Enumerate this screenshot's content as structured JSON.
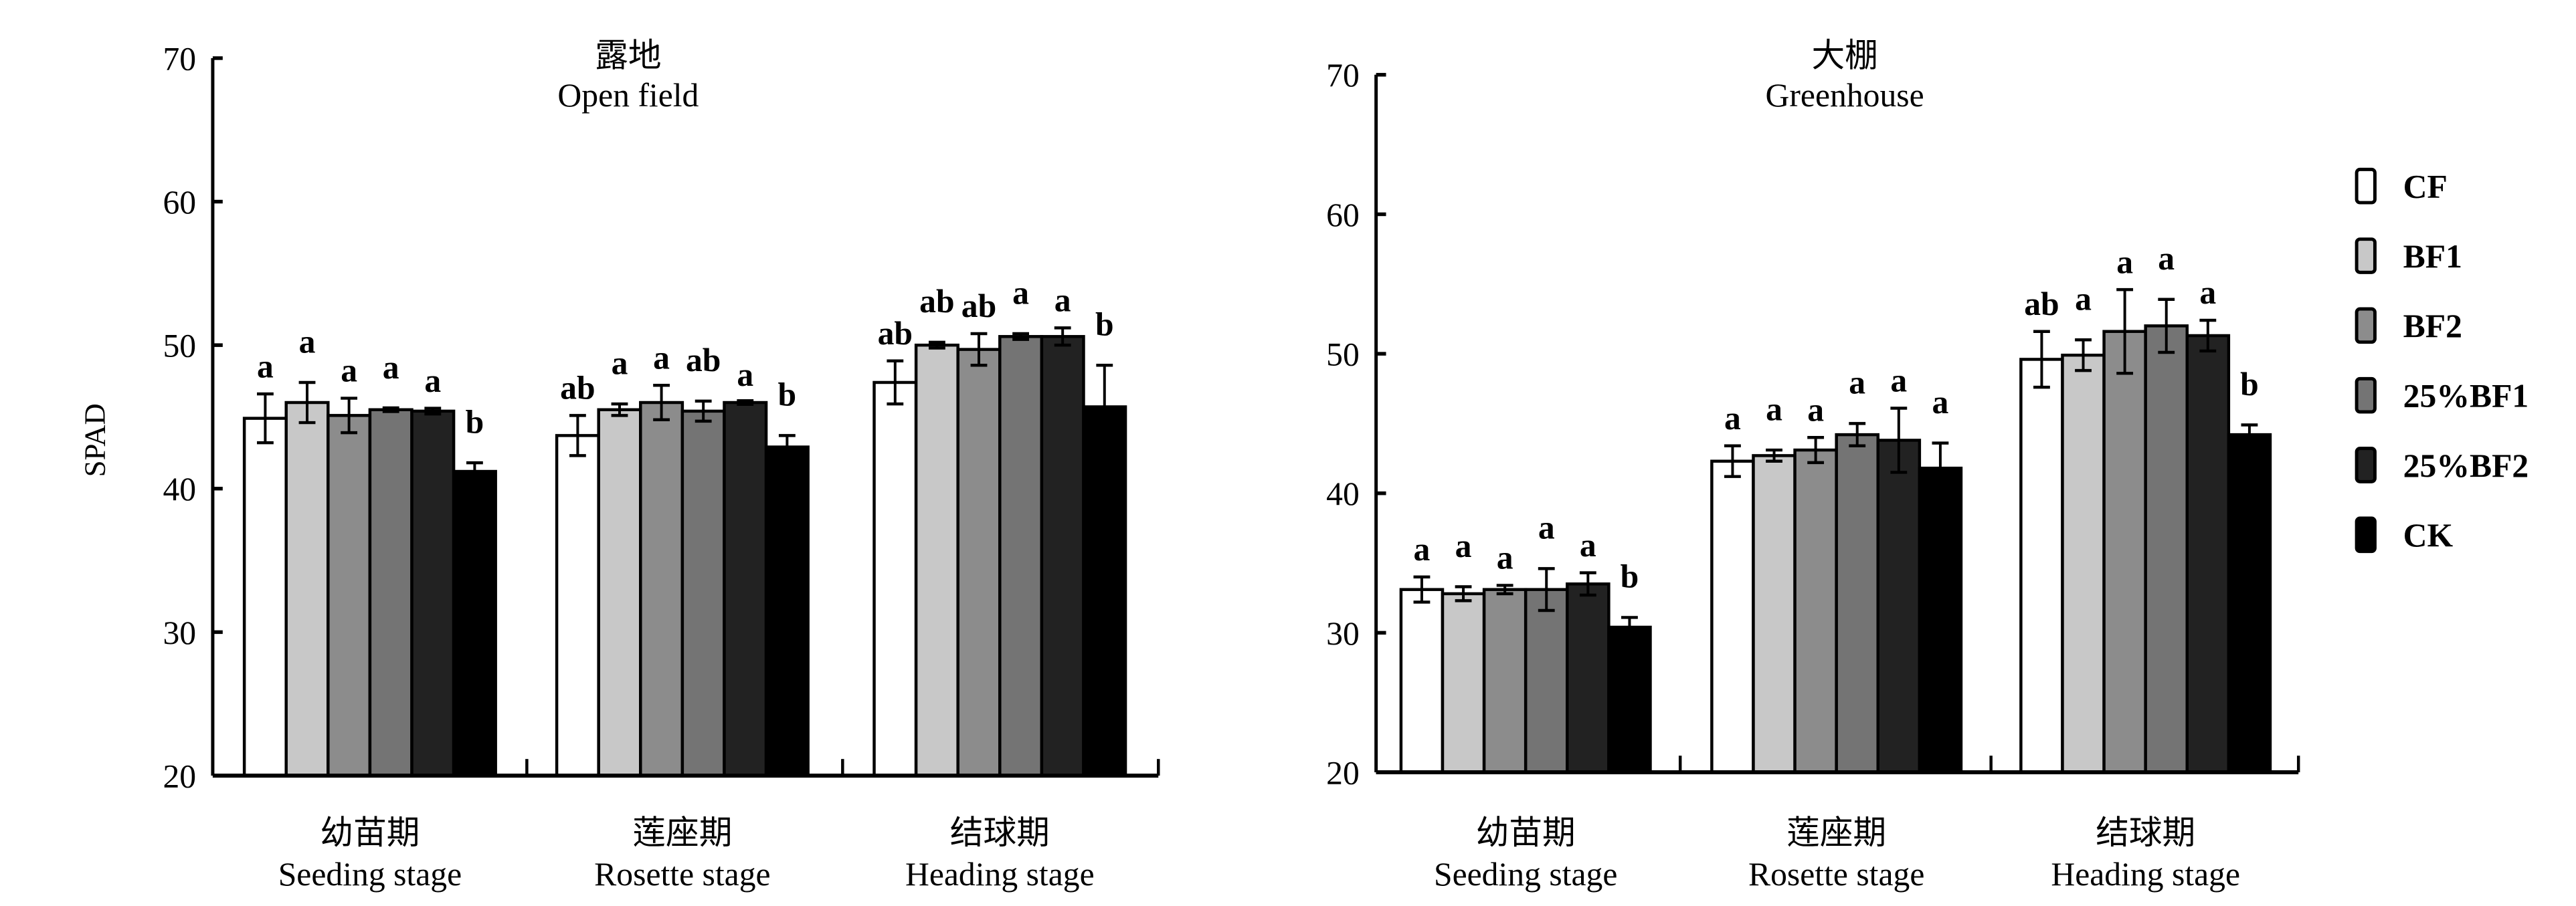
{
  "chart_data": [
    {
      "type": "bar",
      "title_zh": "露地",
      "title": "Open field",
      "ylabel": "SPAD",
      "ylim": [
        20,
        70
      ],
      "yticks": [
        20,
        30,
        40,
        50,
        60,
        70
      ],
      "categories": [
        {
          "zh": "幼苗期",
          "en": "Seeding stage"
        },
        {
          "zh": "莲座期",
          "en": "Rosette stage"
        },
        {
          "zh": "结球期",
          "en": "Heading stage"
        }
      ],
      "series": [
        {
          "name": "CF",
          "values": [
            44.9,
            43.7,
            47.4
          ],
          "errors": [
            1.7,
            1.4,
            1.5
          ],
          "letters": [
            "a",
            "ab",
            "ab"
          ]
        },
        {
          "name": "BF1",
          "values": [
            46.0,
            45.5,
            50.0
          ],
          "errors": [
            1.4,
            0.4,
            0.2
          ],
          "letters": [
            "a",
            "a",
            "ab"
          ]
        },
        {
          "name": "BF2",
          "values": [
            45.1,
            46.0,
            49.7
          ],
          "errors": [
            1.2,
            1.2,
            1.1
          ],
          "letters": [
            "a",
            "a",
            "ab"
          ]
        },
        {
          "name": "25%BF1",
          "values": [
            45.5,
            45.4,
            50.6
          ],
          "errors": [
            0.1,
            0.7,
            0.2
          ],
          "letters": [
            "a",
            "ab",
            "a"
          ]
        },
        {
          "name": "25%BF2",
          "values": [
            45.4,
            46.0,
            50.6
          ],
          "errors": [
            0.2,
            0.0,
            0.6
          ],
          "letters": [
            "a",
            "a",
            "a"
          ]
        },
        {
          "name": "CK",
          "values": [
            41.2,
            42.9,
            45.7
          ],
          "errors": [
            0.6,
            0.8,
            2.9
          ],
          "letters": [
            "b",
            "b",
            "b"
          ]
        }
      ]
    },
    {
      "type": "bar",
      "title_zh": "大棚",
      "title": "Greenhouse",
      "ylabel": "",
      "ylim": [
        20,
        70
      ],
      "yticks": [
        20,
        30,
        40,
        50,
        60,
        70
      ],
      "categories": [
        {
          "zh": "幼苗期",
          "en": "Seeding stage"
        },
        {
          "zh": "莲座期",
          "en": "Rosette stage"
        },
        {
          "zh": "结球期",
          "en": "Heading stage"
        }
      ],
      "series": [
        {
          "name": "CF",
          "values": [
            33.1,
            42.3,
            49.6
          ],
          "errors": [
            0.9,
            1.1,
            2.0
          ],
          "letters": [
            "a",
            "a",
            "ab"
          ]
        },
        {
          "name": "BF1",
          "values": [
            32.8,
            42.7,
            49.9
          ],
          "errors": [
            0.5,
            0.4,
            1.1
          ],
          "letters": [
            "a",
            "a",
            "a"
          ]
        },
        {
          "name": "BF2",
          "values": [
            33.1,
            43.1,
            51.6
          ],
          "errors": [
            0.3,
            0.9,
            3.0
          ],
          "letters": [
            "a",
            "a",
            "a"
          ]
        },
        {
          "name": "25%BF1",
          "values": [
            33.1,
            44.2,
            52.0
          ],
          "errors": [
            1.5,
            0.8,
            1.9
          ],
          "letters": [
            "a",
            "a",
            "a"
          ]
        },
        {
          "name": "25%BF2",
          "values": [
            33.5,
            43.8,
            51.3
          ],
          "errors": [
            0.8,
            2.3,
            1.1
          ],
          "letters": [
            "a",
            "a",
            "a"
          ]
        },
        {
          "name": "CK",
          "values": [
            30.4,
            41.8,
            44.2
          ],
          "errors": [
            0.7,
            1.8,
            0.7
          ],
          "letters": [
            "b",
            "a",
            "b"
          ]
        }
      ]
    }
  ],
  "legend": {
    "placement": "right",
    "items": [
      {
        "label": "CF",
        "color": "#ffffff"
      },
      {
        "label": "BF1",
        "color": "#c8c8c8"
      },
      {
        "label": "BF2",
        "color": "#8c8c8c"
      },
      {
        "label": "25%BF1",
        "color": "#747474"
      },
      {
        "label": "25%BF2",
        "color": "#222222"
      },
      {
        "label": "CK",
        "color": "#000000"
      }
    ]
  }
}
